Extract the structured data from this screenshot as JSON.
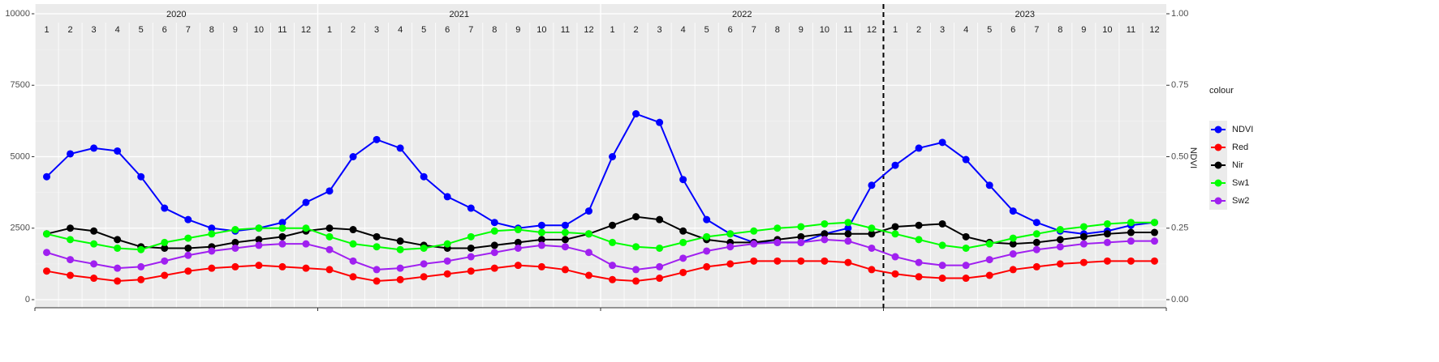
{
  "chart_data": {
    "type": "line",
    "years": [
      2020,
      2021,
      2022,
      2023
    ],
    "months": [
      1,
      2,
      3,
      4,
      5,
      6,
      7,
      8,
      9,
      10,
      11,
      12
    ],
    "x": [
      "2020-01",
      "2020-02",
      "2020-03",
      "2020-04",
      "2020-05",
      "2020-06",
      "2020-07",
      "2020-08",
      "2020-09",
      "2020-10",
      "2020-11",
      "2020-12",
      "2021-01",
      "2021-02",
      "2021-03",
      "2021-04",
      "2021-05",
      "2021-06",
      "2021-07",
      "2021-08",
      "2021-09",
      "2021-10",
      "2021-11",
      "2021-12",
      "2022-01",
      "2022-02",
      "2022-03",
      "2022-04",
      "2022-05",
      "2022-06",
      "2022-07",
      "2022-08",
      "2022-09",
      "2022-10",
      "2022-11",
      "2022-12",
      "2023-01",
      "2023-02",
      "2023-03",
      "2023-04",
      "2023-05",
      "2023-06",
      "2023-07",
      "2023-08",
      "2023-09",
      "2023-10",
      "2023-11",
      "2023-12"
    ],
    "series": [
      {
        "name": "NDVI",
        "color": "#0000ff",
        "values": [
          4300,
          5100,
          5300,
          5200,
          4300,
          3200,
          2800,
          2500,
          2400,
          2500,
          2700,
          3400,
          3800,
          5000,
          5600,
          5300,
          4300,
          3600,
          3200,
          2700,
          2500,
          2600,
          2600,
          3100,
          5000,
          6500,
          6200,
          4200,
          2800,
          2300,
          2000,
          2000,
          2000,
          2300,
          2500,
          4000,
          4700,
          5300,
          5500,
          4900,
          4000,
          3100,
          2700,
          2400,
          2300,
          2400,
          2600,
          2700
        ]
      },
      {
        "name": "Red",
        "color": "#ff0000",
        "values": [
          1000,
          850,
          750,
          650,
          700,
          850,
          1000,
          1100,
          1150,
          1200,
          1150,
          1100,
          1050,
          800,
          650,
          700,
          800,
          900,
          1000,
          1100,
          1200,
          1150,
          1050,
          850,
          700,
          650,
          750,
          950,
          1150,
          1250,
          1350,
          1350,
          1350,
          1350,
          1300,
          1050,
          900,
          800,
          750,
          750,
          850,
          1050,
          1150,
          1250,
          1300,
          1350,
          1350,
          1350
        ]
      },
      {
        "name": "Nir",
        "color": "#000000",
        "values": [
          2300,
          2500,
          2400,
          2100,
          1850,
          1800,
          1800,
          1850,
          2000,
          2100,
          2200,
          2400,
          2500,
          2450,
          2200,
          2050,
          1900,
          1800,
          1800,
          1900,
          2000,
          2100,
          2100,
          2300,
          2600,
          2900,
          2800,
          2400,
          2100,
          2000,
          2000,
          2100,
          2200,
          2300,
          2300,
          2300,
          2550,
          2600,
          2650,
          2200,
          2000,
          1950,
          2000,
          2100,
          2200,
          2300,
          2350,
          2350
        ]
      },
      {
        "name": "Sw1",
        "color": "#00ff00",
        "values": [
          2300,
          2100,
          1950,
          1800,
          1750,
          2000,
          2150,
          2300,
          2450,
          2500,
          2500,
          2500,
          2200,
          1950,
          1850,
          1750,
          1800,
          1950,
          2200,
          2400,
          2450,
          2350,
          2350,
          2300,
          2000,
          1850,
          1800,
          2000,
          2200,
          2300,
          2400,
          2500,
          2550,
          2650,
          2700,
          2500,
          2300,
          2100,
          1900,
          1800,
          1950,
          2150,
          2300,
          2450,
          2550,
          2650,
          2700,
          2700
        ]
      },
      {
        "name": "Sw2",
        "color": "#a020f0",
        "values": [
          1650,
          1400,
          1250,
          1100,
          1150,
          1350,
          1550,
          1700,
          1800,
          1900,
          1950,
          1950,
          1750,
          1350,
          1050,
          1100,
          1250,
          1350,
          1500,
          1650,
          1800,
          1900,
          1850,
          1650,
          1200,
          1050,
          1150,
          1450,
          1700,
          1850,
          1950,
          2000,
          2000,
          2100,
          2050,
          1800,
          1500,
          1300,
          1200,
          1200,
          1400,
          1600,
          1750,
          1850,
          1950,
          2000,
          2050,
          2050
        ]
      }
    ],
    "ylim": [
      0,
      10000
    ],
    "yticks": [
      0,
      2500,
      5000,
      7500,
      10000
    ],
    "y2lim": [
      0,
      1
    ],
    "y2ticks": [
      {
        "value": 0,
        "label": "0.00"
      },
      {
        "value": 0.25,
        "label": "0.25"
      },
      {
        "value": 0.5,
        "label": "0.50"
      },
      {
        "value": 0.75,
        "label": "0.75"
      },
      {
        "value": 1,
        "label": "1.00"
      }
    ],
    "y2label": "NDVI",
    "vline": "2023-01",
    "legend_title": "colour",
    "legend": "right",
    "grid": true
  }
}
